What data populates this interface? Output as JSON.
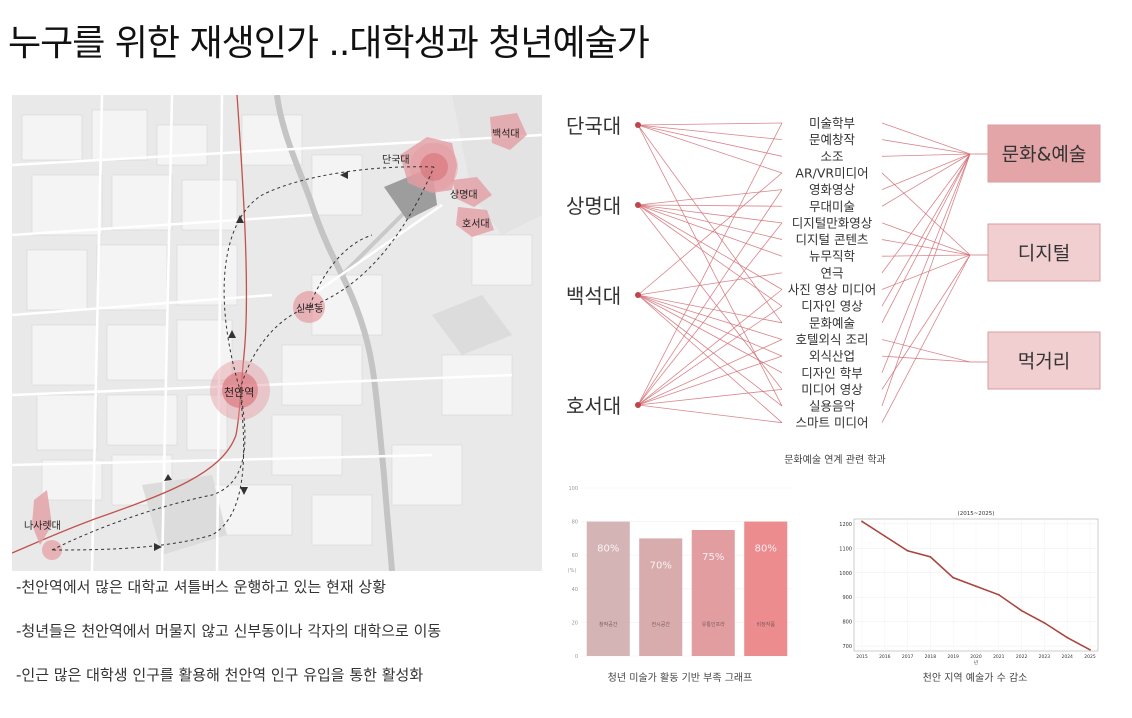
{
  "page": {
    "title": "누구를 위한 재생인가 ..대학생과 청년예술가"
  },
  "map": {
    "labels": {
      "dankook": "단국대",
      "sangmyung": "상명대",
      "baekseok": "백석대",
      "hoseo": "호서대",
      "sinbu": "신부동",
      "cheonan_station": "천안역",
      "nasaret": "나사렛대"
    },
    "accent_color": "#d9868c"
  },
  "notes": [
    "-천안역에서 많은 대학교 셔틀버스 운행하고 있는 현재 상황",
    "-청년들은 천안역에서 머물지 않고 신부동이나 각자의 대학으로 이동",
    "-인근 많은 대학생 인구를 활용해 천안역  인구 유입을 통한 활성화"
  ],
  "network": {
    "universities": [
      "단국대",
      "상명대",
      "백석대",
      "호서대"
    ],
    "departments": [
      "미술학부",
      "문예창작",
      "소조",
      "AR/VR미디어",
      "영화영상",
      "무대미술",
      "디지털만화영상",
      "디지털 콘텐츠",
      "뉴무직학",
      "연극",
      "사진 영상 미디어",
      "디자인 영상",
      "문화예술",
      "호텔외식 조리",
      "외식산업",
      "디자인 학부",
      "미디어 영상",
      "실용음악",
      "스마트 미디어"
    ],
    "categories": [
      "문화&예술",
      "디지털",
      "먹거리"
    ],
    "caption": "문화예술 연계 관련 학과",
    "line_color": "#d27077"
  },
  "chart_data": [
    {
      "type": "bar",
      "categories": [
        "창작공간",
        "전시공간",
        "유통인프라",
        "비정작품"
      ],
      "values": [
        80,
        70,
        75,
        80
      ],
      "value_labels": [
        "80%",
        "70%",
        "75%",
        "80%"
      ],
      "ylim": [
        0,
        100
      ],
      "yticks": [
        "100",
        "80",
        "60",
        "40",
        "20",
        "0"
      ],
      "ylabel": "(%)",
      "colors": [
        "#d5b4b6",
        "#d8acad",
        "#e29da0",
        "#ec8c8f"
      ],
      "caption": "청년 미술가 활동 기반 부족 그래프"
    },
    {
      "type": "line",
      "title": "(2015~2025)",
      "x": [
        "2015",
        "2016",
        "2017",
        "2018",
        "2019",
        "2020",
        "2021",
        "2022",
        "2023",
        "2024",
        "2025"
      ],
      "values": [
        1210,
        1150,
        1090,
        1065,
        980,
        945,
        910,
        845,
        795,
        735,
        685
      ],
      "ylim": [
        680,
        1220
      ],
      "yticks": [
        1200,
        1100,
        1000,
        900,
        800,
        700
      ],
      "xlabel": "년",
      "line_color": "#a9463e",
      "caption": "천안 지역 예술가 수 감소"
    }
  ]
}
